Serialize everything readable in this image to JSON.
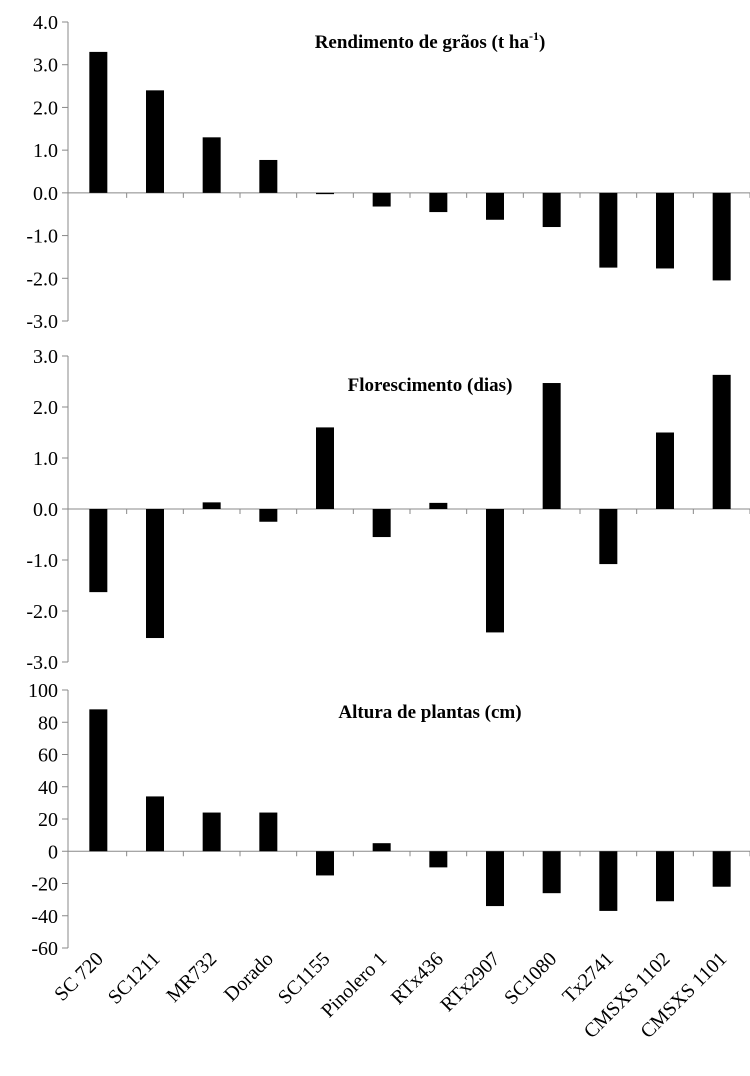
{
  "chart_data": {
    "type": "bar",
    "categories": [
      "SC 720",
      "SC1211",
      "MR732",
      "Dorado",
      "SC1155",
      "Pinolero 1",
      "RTx436",
      "RTx2907",
      "SC1080",
      "Tx2741",
      "CMSXS 1102",
      "CMSXS 1101"
    ],
    "panels": [
      {
        "title": "Rendimento de grãos (t ha",
        "title_sup": "-1",
        "title_end": ")",
        "ylim": [
          -3,
          4
        ],
        "yticks": [
          "4.0",
          "3.0",
          "2.0",
          "1.0",
          "0.0",
          "-1.0",
          "-2.0",
          "-3.0"
        ],
        "values": [
          3.3,
          2.4,
          1.3,
          0.77,
          -0.03,
          -0.32,
          -0.45,
          -0.63,
          -0.8,
          -1.75,
          -1.77,
          -2.05
        ]
      },
      {
        "title": "Florescimento (dias)",
        "title_sup": "",
        "title_end": "",
        "ylim": [
          -3,
          3
        ],
        "yticks": [
          "3.0",
          "2.0",
          "1.0",
          "0.0",
          "-1.0",
          "-2.0",
          "-3.0"
        ],
        "values": [
          -1.63,
          -2.53,
          0.13,
          -0.25,
          1.6,
          -0.55,
          0.12,
          -2.42,
          2.47,
          -1.08,
          1.5,
          2.63
        ]
      },
      {
        "title": "Altura de plantas (cm)",
        "title_sup": "",
        "title_end": "",
        "ylim": [
          -60,
          100
        ],
        "yticks": [
          "100",
          "80",
          "60",
          "40",
          "20",
          "0",
          "-20",
          "-40",
          "-60"
        ],
        "values": [
          88,
          34,
          24,
          24,
          -15,
          5,
          -10,
          -34,
          -26,
          -37,
          -31,
          -22
        ]
      }
    ],
    "bar_color": "#000000",
    "grid": false,
    "legend": "none"
  }
}
